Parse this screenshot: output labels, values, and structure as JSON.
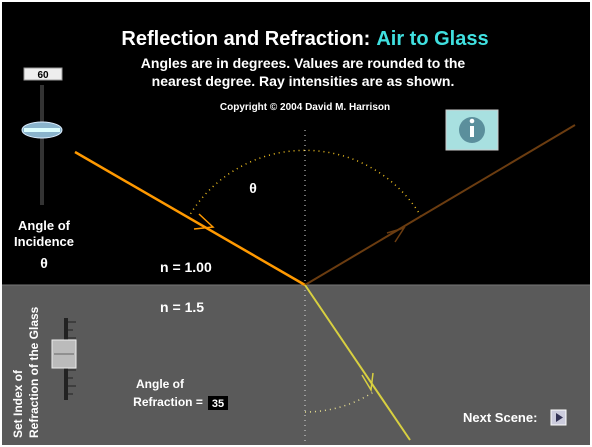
{
  "header": {
    "title": "Reflection and Refraction:",
    "title_highlight": "Air to Glass",
    "subtitle_lines": [
      "Angles are in degrees. Values are rounded to the",
      "nearest degree. Ray intensities are as shown."
    ],
    "copyright": "Copyright © 2004 David M. Harrison"
  },
  "incidence": {
    "value": 60,
    "label_lines": [
      "Angle of",
      "Incidence"
    ],
    "symbol": "θ"
  },
  "arc_symbol": "θ",
  "air": {
    "index_label": "n = 1.00"
  },
  "glass": {
    "index_label": "n =",
    "index_value": "1.5",
    "slider_label_lines": [
      "Set Index of",
      "Refraction of the Glass"
    ]
  },
  "refraction": {
    "label_lines": [
      "Angle of",
      "Refraction ="
    ],
    "value": 35
  },
  "next_scene": "Next Scene:"
}
